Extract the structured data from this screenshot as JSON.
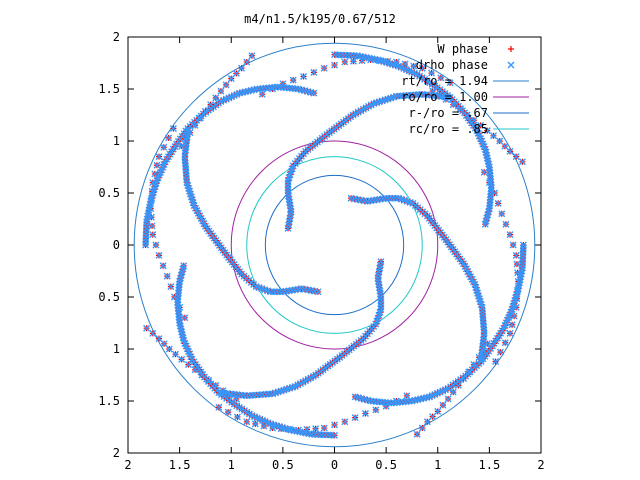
{
  "chart_data": {
    "type": "scatter",
    "title": "m4/n1.5/k195/0.67/512",
    "xlim": [
      -2,
      2
    ],
    "ylim": [
      -2,
      2
    ],
    "xticks": [
      -2,
      -1.5,
      -1,
      -0.5,
      0,
      0.5,
      1,
      1.5,
      2
    ],
    "yticks": [
      -2,
      -1.5,
      -1,
      -0.5,
      0,
      0.5,
      1,
      1.5,
      2
    ],
    "xtick_labels": [
      "2",
      "1.5",
      "1",
      "0.5",
      "0",
      "0.5",
      "1",
      "1.5",
      "2"
    ],
    "ytick_labels": [
      "2",
      "1.5",
      "1",
      "0.5",
      "0",
      "0.5",
      "1",
      "1.5",
      "2"
    ],
    "grid": false,
    "legend_position": "top-right",
    "series": [
      {
        "name": "W phase",
        "kind": "points",
        "marker": "plus",
        "color": "#ff0000",
        "symmetry": 4,
        "arms": [
          [
            [
              -0.45,
              0.16
            ],
            [
              -0.42,
              0.32
            ],
            [
              -0.45,
              0.5
            ],
            [
              -0.45,
              0.62
            ],
            [
              -0.4,
              0.76
            ],
            [
              -0.28,
              0.9
            ],
            [
              -0.05,
              1.08
            ],
            [
              0.18,
              1.25
            ],
            [
              0.38,
              1.36
            ],
            [
              0.6,
              1.43
            ],
            [
              0.85,
              1.45
            ],
            [
              1.1,
              1.42
            ]
          ],
          [
            [
              0.0,
              1.83
            ],
            [
              0.22,
              1.82
            ],
            [
              0.42,
              1.78
            ],
            [
              0.62,
              1.72
            ],
            [
              0.8,
              1.64
            ],
            [
              0.97,
              1.53
            ],
            [
              1.12,
              1.42
            ],
            [
              1.26,
              1.27
            ],
            [
              1.38,
              1.1
            ],
            [
              1.46,
              0.92
            ],
            [
              1.5,
              0.75
            ],
            [
              1.52,
              0.55
            ],
            [
              1.5,
              0.35
            ],
            [
              1.46,
              0.2
            ]
          ],
          [
            [
              -1.56,
              1.12
            ],
            [
              -1.7,
              0.85
            ],
            [
              -1.76,
              0.6
            ],
            [
              -1.78,
              0.35
            ],
            [
              -1.76,
              0.1
            ],
            [
              -1.7,
              -0.1
            ],
            [
              -1.62,
              -0.3
            ],
            [
              -1.55,
              -0.5
            ],
            [
              -1.45,
              -0.7
            ]
          ],
          [
            [
              -0.8,
              1.82
            ],
            [
              -0.9,
              1.7
            ],
            [
              -1.0,
              1.6
            ],
            [
              -1.1,
              1.48
            ],
            [
              -1.2,
              1.35
            ],
            [
              -1.3,
              1.22
            ],
            [
              -1.4,
              1.08
            ],
            [
              -1.48,
              0.95
            ]
          ]
        ]
      },
      {
        "name": "drho phase",
        "kind": "points",
        "marker": "cross",
        "color": "#3399ff",
        "symmetry": 4,
        "arms": [
          [
            [
              -0.45,
              0.16
            ],
            [
              -0.42,
              0.32
            ],
            [
              -0.45,
              0.5
            ],
            [
              -0.45,
              0.62
            ],
            [
              -0.4,
              0.76
            ],
            [
              -0.28,
              0.9
            ],
            [
              -0.05,
              1.08
            ],
            [
              0.18,
              1.25
            ],
            [
              0.38,
              1.36
            ],
            [
              0.6,
              1.43
            ],
            [
              0.85,
              1.45
            ],
            [
              1.1,
              1.42
            ]
          ],
          [
            [
              0.0,
              1.83
            ],
            [
              0.22,
              1.82
            ],
            [
              0.42,
              1.78
            ],
            [
              0.62,
              1.72
            ],
            [
              0.8,
              1.64
            ],
            [
              0.97,
              1.53
            ],
            [
              1.12,
              1.42
            ],
            [
              1.26,
              1.27
            ],
            [
              1.38,
              1.1
            ],
            [
              1.46,
              0.92
            ],
            [
              1.5,
              0.75
            ],
            [
              1.52,
              0.55
            ],
            [
              1.5,
              0.35
            ],
            [
              1.46,
              0.2
            ]
          ],
          [
            [
              -1.56,
              1.12
            ],
            [
              -1.7,
              0.85
            ],
            [
              -1.76,
              0.6
            ],
            [
              -1.78,
              0.35
            ],
            [
              -1.76,
              0.1
            ],
            [
              -1.7,
              -0.1
            ],
            [
              -1.62,
              -0.3
            ],
            [
              -1.55,
              -0.5
            ],
            [
              -1.45,
              -0.7
            ]
          ],
          [
            [
              -0.8,
              1.82
            ],
            [
              -0.9,
              1.7
            ],
            [
              -1.0,
              1.6
            ],
            [
              -1.1,
              1.48
            ],
            [
              -1.2,
              1.35
            ],
            [
              -1.3,
              1.22
            ],
            [
              -1.4,
              1.08
            ],
            [
              -1.48,
              0.95
            ]
          ]
        ]
      },
      {
        "name": "rt/ro = 1.94",
        "kind": "circle",
        "radius": 1.94,
        "color": "#2a7fc9"
      },
      {
        "name": "ro/ro = 1.00",
        "kind": "circle",
        "radius": 1.0,
        "color": "#a020a0"
      },
      {
        "name": "r-/ro = .67",
        "kind": "circle",
        "radius": 0.67,
        "color": "#1e6ec8"
      },
      {
        "name": "rc/ro = .85",
        "kind": "circle",
        "radius": 0.85,
        "color": "#20c8c8"
      }
    ]
  }
}
